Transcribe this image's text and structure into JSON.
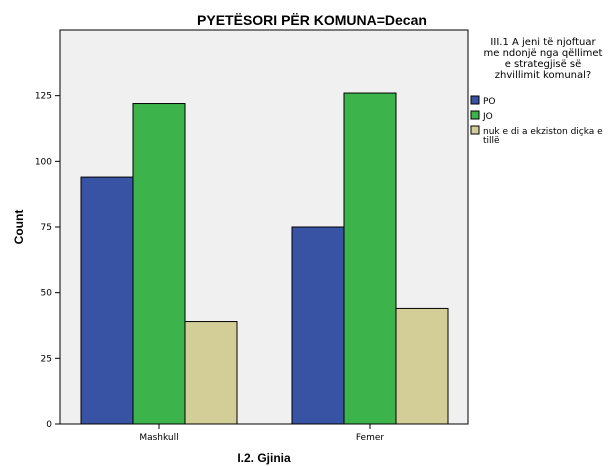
{
  "chart_data": {
    "type": "bar",
    "title": "PYETËSORI PËR KOMUNA=Decan",
    "xlabel": "I.2. Gjinia",
    "ylabel": "Count",
    "categories": [
      "Mashkull",
      "Femer"
    ],
    "ylim": [
      0,
      150
    ],
    "yticks": [
      0,
      25,
      50,
      75,
      100,
      125
    ],
    "grid": false,
    "legend_position": "right",
    "legend_title": [
      "III.1 A jeni të njoftuar",
      "me ndonjë nga qëllimet",
      "e strategjisë së",
      "zhvillimit komunal?"
    ],
    "series": [
      {
        "name": "PO",
        "values": [
          94,
          75
        ],
        "color": "#3953a4"
      },
      {
        "name": "JO",
        "values": [
          122,
          126
        ],
        "color": "#3cb44b"
      },
      {
        "name": [
          "nuk e di a ekziston diçka e",
          "tillë"
        ],
        "values": [
          39,
          44
        ],
        "color": "#d3ce97"
      }
    ],
    "plot_background": "#f0f0f0"
  }
}
